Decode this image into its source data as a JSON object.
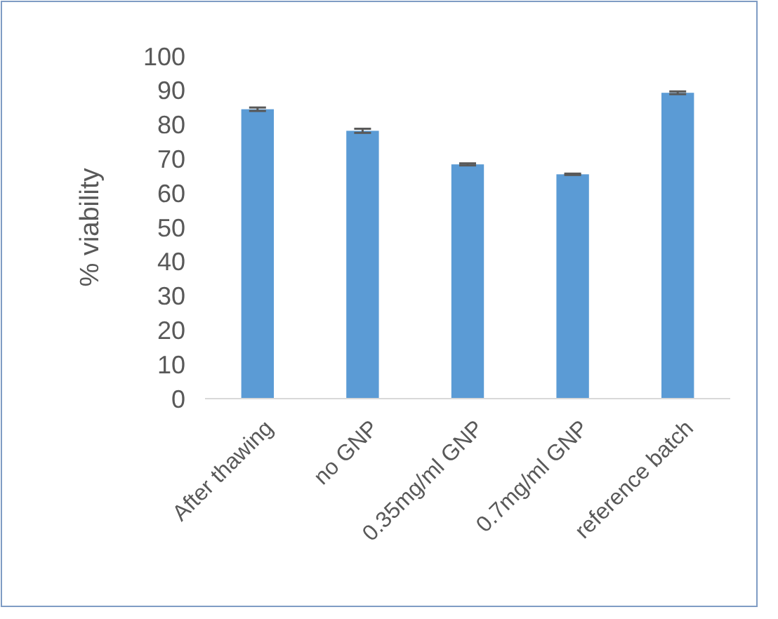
{
  "chart_data": {
    "type": "bar",
    "ylabel": "% viability",
    "categories": [
      "After thawing",
      "no GNP",
      "0.35mg/ml GNP",
      "0.7mg/ml GNP",
      "reference batch"
    ],
    "values": [
      84.5,
      78.2,
      68.4,
      65.5,
      89.3
    ],
    "errors": [
      0.5,
      0.6,
      0.3,
      0.2,
      0.4
    ],
    "color": "#5b9bd5",
    "ylim": [
      0,
      100
    ],
    "yticks": [
      0,
      10,
      20,
      30,
      40,
      50,
      60,
      70,
      80,
      90,
      100
    ],
    "grid": false
  }
}
